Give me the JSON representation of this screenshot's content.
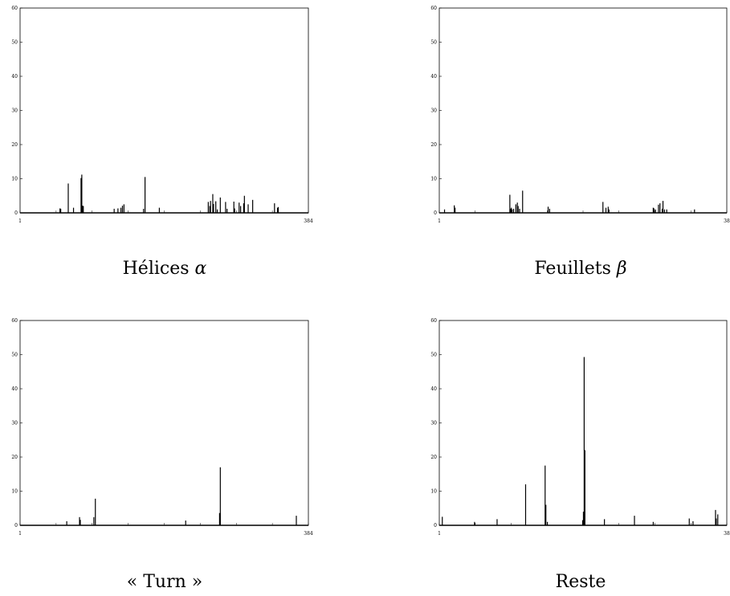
{
  "chart_data": [
    {
      "type": "bar",
      "title": "Hélices α",
      "title_text": "Hélices ",
      "title_symbol": "α",
      "xlim": [
        1,
        384
      ],
      "x_tick_labels": [
        "1",
        "384"
      ],
      "ylim": [
        0,
        60
      ],
      "y_tick_labels": [
        "0",
        "10",
        "20",
        "30",
        "40",
        "50",
        "60"
      ],
      "grid": false,
      "x": [
        54,
        55,
        65,
        72,
        82,
        83,
        84,
        85,
        126,
        131,
        135,
        137,
        139,
        165,
        167,
        186,
        251,
        253,
        254,
        257,
        258,
        261,
        263,
        267,
        274,
        276,
        285,
        286,
        292,
        294,
        298,
        299,
        304,
        310,
        339,
        343,
        344
      ],
      "values": [
        1.3,
        1.2,
        8.6,
        1.5,
        10.2,
        11.2,
        2.1,
        2.0,
        1.2,
        1.3,
        1.5,
        2.1,
        2.5,
        1.2,
        10.5,
        1.5,
        3.2,
        2.0,
        3.5,
        5.5,
        2.6,
        3.4,
        1.0,
        4.5,
        3.2,
        1.2,
        3.3,
        1.3,
        3.0,
        2.0,
        2.8,
        5.0,
        2.5,
        3.8,
        2.8,
        1.5,
        1.7
      ]
    },
    {
      "type": "bar",
      "title": "Feuillets β",
      "title_text": "Feuillets ",
      "title_symbol": "β",
      "xlim": [
        1,
        384
      ],
      "x_tick_labels": [
        "1",
        "38"
      ],
      "ylim": [
        0,
        60
      ],
      "y_tick_labels": [
        "0",
        "10",
        "20",
        "30",
        "40",
        "50",
        "60"
      ],
      "grid": false,
      "x": [
        8,
        21,
        22,
        95,
        96,
        97,
        98,
        100,
        103,
        105,
        106,
        108,
        112,
        146,
        148,
        219,
        223,
        226,
        227,
        286,
        287,
        289,
        293,
        295,
        298,
        299,
        301,
        304,
        341
      ],
      "values": [
        1.0,
        2.2,
        1.5,
        5.3,
        1.2,
        1.5,
        1.0,
        1.2,
        2.5,
        3.0,
        2.0,
        1.2,
        6.5,
        1.8,
        1.2,
        3.2,
        1.5,
        1.8,
        1.0,
        1.5,
        1.3,
        1.0,
        2.4,
        2.8,
        1.2,
        3.5,
        1.0,
        1.0,
        1.0
      ]
    },
    {
      "type": "bar",
      "title": "« Turn »",
      "title_text": "« Turn »",
      "title_symbol": "",
      "xlim": [
        1,
        384
      ],
      "x_tick_labels": [
        "1",
        "384"
      ],
      "ylim": [
        0,
        60
      ],
      "y_tick_labels": [
        "0",
        "10",
        "20",
        "30",
        "40",
        "50",
        "60"
      ],
      "grid": false,
      "x": [
        63,
        80,
        81,
        99,
        101,
        221,
        266,
        267,
        368
      ],
      "values": [
        1.2,
        2.4,
        1.6,
        2.4,
        7.8,
        1.4,
        3.6,
        17.0,
        2.8
      ]
    },
    {
      "type": "bar",
      "title": "Reste",
      "title_text": "Reste",
      "title_symbol": "",
      "xlim": [
        1,
        384
      ],
      "x_tick_labels": [
        "1",
        "38"
      ],
      "ylim": [
        0,
        60
      ],
      "y_tick_labels": [
        "0",
        "10",
        "20",
        "30",
        "40",
        "50",
        "60"
      ],
      "grid": false,
      "x": [
        5,
        48,
        78,
        116,
        142,
        143,
        145,
        192,
        193,
        194,
        195,
        221,
        261,
        286,
        334,
        339,
        369,
        370,
        372
      ],
      "values": [
        2.5,
        1.0,
        1.8,
        12.0,
        17.5,
        6.0,
        1.0,
        1.5,
        4.0,
        49.3,
        22.0,
        1.8,
        2.8,
        1.0,
        2.0,
        1.2,
        4.5,
        2.0,
        3.2
      ]
    }
  ]
}
